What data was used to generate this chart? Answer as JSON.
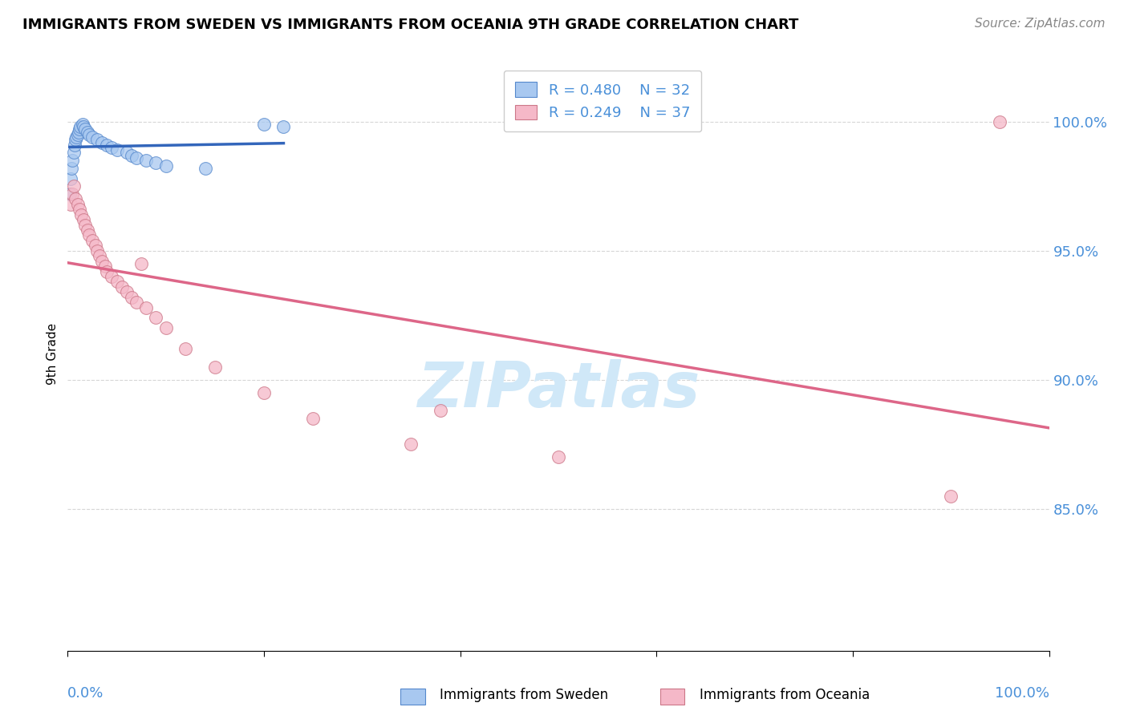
{
  "title": "IMMIGRANTS FROM SWEDEN VS IMMIGRANTS FROM OCEANIA 9TH GRADE CORRELATION CHART",
  "source": "Source: ZipAtlas.com",
  "ylabel": "9th Grade",
  "y_tick_labels": [
    "85.0%",
    "90.0%",
    "95.0%",
    "100.0%"
  ],
  "y_tick_values": [
    0.85,
    0.9,
    0.95,
    1.0
  ],
  "x_range": [
    0.0,
    1.0
  ],
  "y_range": [
    0.795,
    1.025
  ],
  "legend_sweden_R": "R = 0.480",
  "legend_sweden_N": "N = 32",
  "legend_oceania_R": "R = 0.249",
  "legend_oceania_N": "N = 37",
  "color_sweden_fill": "#a8c8f0",
  "color_sweden_edge": "#5588cc",
  "color_oceania_fill": "#f5b8c8",
  "color_oceania_edge": "#cc7788",
  "color_sweden_line": "#3366bb",
  "color_oceania_line": "#dd6688",
  "color_tick_labels": "#4a90d9",
  "color_grid": "#cccccc",
  "watermark_color": "#d0e8f8",
  "sweden_x": [
    0.002,
    0.003,
    0.004,
    0.005,
    0.006,
    0.007,
    0.008,
    0.009,
    0.01,
    0.011,
    0.012,
    0.013,
    0.015,
    0.016,
    0.018,
    0.02,
    0.022,
    0.025,
    0.03,
    0.035,
    0.04,
    0.045,
    0.05,
    0.06,
    0.065,
    0.07,
    0.08,
    0.09,
    0.1,
    0.14,
    0.2,
    0.22
  ],
  "sweden_y": [
    0.972,
    0.978,
    0.982,
    0.985,
    0.988,
    0.991,
    0.993,
    0.994,
    0.995,
    0.996,
    0.997,
    0.998,
    0.999,
    0.998,
    0.997,
    0.996,
    0.995,
    0.994,
    0.993,
    0.992,
    0.991,
    0.99,
    0.989,
    0.988,
    0.987,
    0.986,
    0.985,
    0.984,
    0.983,
    0.982,
    0.999,
    0.998
  ],
  "oceania_x": [
    0.003,
    0.005,
    0.006,
    0.008,
    0.01,
    0.012,
    0.014,
    0.016,
    0.018,
    0.02,
    0.022,
    0.025,
    0.028,
    0.03,
    0.032,
    0.035,
    0.038,
    0.04,
    0.045,
    0.05,
    0.055,
    0.06,
    0.065,
    0.07,
    0.075,
    0.08,
    0.09,
    0.1,
    0.12,
    0.15,
    0.2,
    0.25,
    0.35,
    0.38,
    0.5,
    0.9,
    0.95
  ],
  "oceania_y": [
    0.968,
    0.972,
    0.975,
    0.97,
    0.968,
    0.966,
    0.964,
    0.962,
    0.96,
    0.958,
    0.956,
    0.954,
    0.952,
    0.95,
    0.948,
    0.946,
    0.944,
    0.942,
    0.94,
    0.938,
    0.936,
    0.934,
    0.932,
    0.93,
    0.945,
    0.928,
    0.924,
    0.92,
    0.912,
    0.905,
    0.895,
    0.885,
    0.875,
    0.888,
    0.87,
    0.855,
    1.0
  ]
}
